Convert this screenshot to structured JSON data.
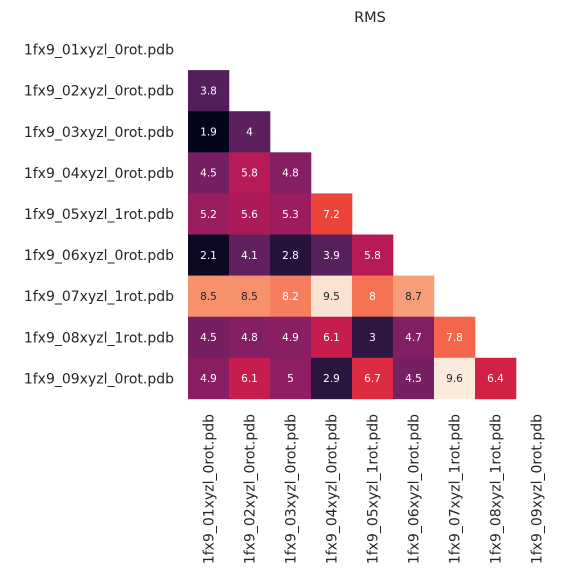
{
  "chart_data": {
    "type": "heatmap",
    "title": "RMS",
    "xlabel": "",
    "ylabel": "",
    "grid": false,
    "legend": "none",
    "labels": [
      "1fx9_01xyzl_0rot.pdb",
      "1fx9_02xyzl_0rot.pdb",
      "1fx9_03xyzl_0rot.pdb",
      "1fx9_04xyzl_0rot.pdb",
      "1fx9_05xyzl_1rot.pdb",
      "1fx9_06xyzl_0rot.pdb",
      "1fx9_07xyzl_1rot.pdb",
      "1fx9_08xyzl_1rot.pdb",
      "1fx9_09xyzl_0rot.pdb"
    ],
    "mask": "upper-triangle-and-diagonal",
    "values": [
      [],
      [
        3.8
      ],
      [
        1.9,
        4
      ],
      [
        4.5,
        5.8,
        4.8
      ],
      [
        5.2,
        5.6,
        5.3,
        7.2
      ],
      [
        2.1,
        4.1,
        2.8,
        3.9,
        5.8
      ],
      [
        8.5,
        8.5,
        8.2,
        9.5,
        8,
        8.7
      ],
      [
        4.5,
        4.8,
        4.9,
        6.1,
        3,
        4.7,
        7.8
      ],
      [
        4.9,
        6.1,
        5,
        2.9,
        6.7,
        4.5,
        9.6,
        6.4
      ]
    ],
    "colormap": "rocket",
    "vmin": 1.9,
    "vmax": 9.6
  }
}
